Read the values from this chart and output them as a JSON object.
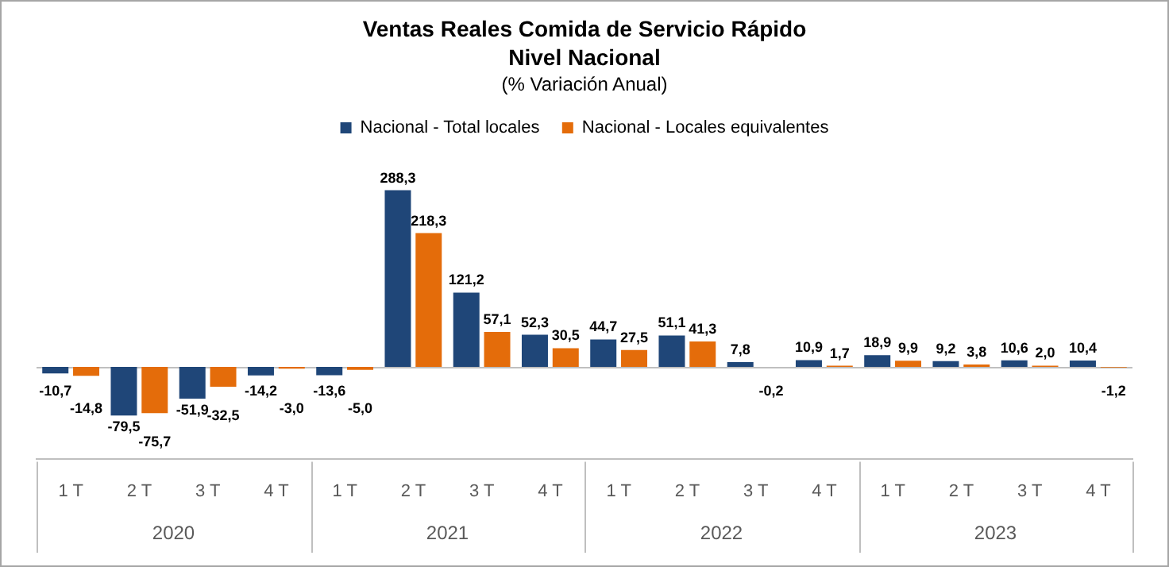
{
  "chart_data": {
    "type": "bar",
    "title": "Ventas Reales Comida de Servicio Rápido",
    "subtitle": "Nivel Nacional",
    "ylabel": "(% Variación Anual)",
    "categories": [
      "1 T",
      "2 T",
      "3 T",
      "4 T",
      "1 T",
      "2 T",
      "3 T",
      "4 T",
      "1 T",
      "2 T",
      "3 T",
      "4 T",
      "1 T",
      "2 T",
      "3 T",
      "4 T"
    ],
    "annotations": [
      "2020",
      "2021",
      "2022",
      "2023"
    ],
    "series": [
      {
        "name": "Nacional - Total locales",
        "color": "#1f4678",
        "values": [
          -10.7,
          -79.5,
          -51.9,
          -14.2,
          -13.6,
          288.3,
          121.2,
          52.3,
          44.7,
          51.1,
          7.8,
          10.9,
          18.9,
          9.2,
          10.6,
          10.4
        ],
        "value_labels": [
          "-10,7",
          "-79,5",
          "-51,9",
          "-14,2",
          "-13,6",
          "288,3",
          "121,2",
          "52,3",
          "44,7",
          "51,1",
          "7,8",
          "10,9",
          "18,9",
          "9,2",
          "10,6",
          "10,4"
        ]
      },
      {
        "name": "Nacional - Locales equivalentes",
        "color": "#e46c0a",
        "values": [
          -14.8,
          -75.7,
          -32.5,
          -3.0,
          -5.0,
          218.3,
          57.1,
          30.5,
          27.5,
          41.3,
          -0.2,
          1.7,
          9.9,
          3.8,
          2.0,
          -1.2
        ],
        "value_labels": [
          "-14,8",
          "-75,7",
          "-32,5",
          "-3,0",
          "-5,0",
          "218,3",
          "57,1",
          "30,5",
          "27,5",
          "41,3",
          "-0,2",
          "1,7",
          "9,9",
          "3,8",
          "2,0",
          "-1,2"
        ]
      }
    ],
    "legend": "top",
    "grid": false
  }
}
